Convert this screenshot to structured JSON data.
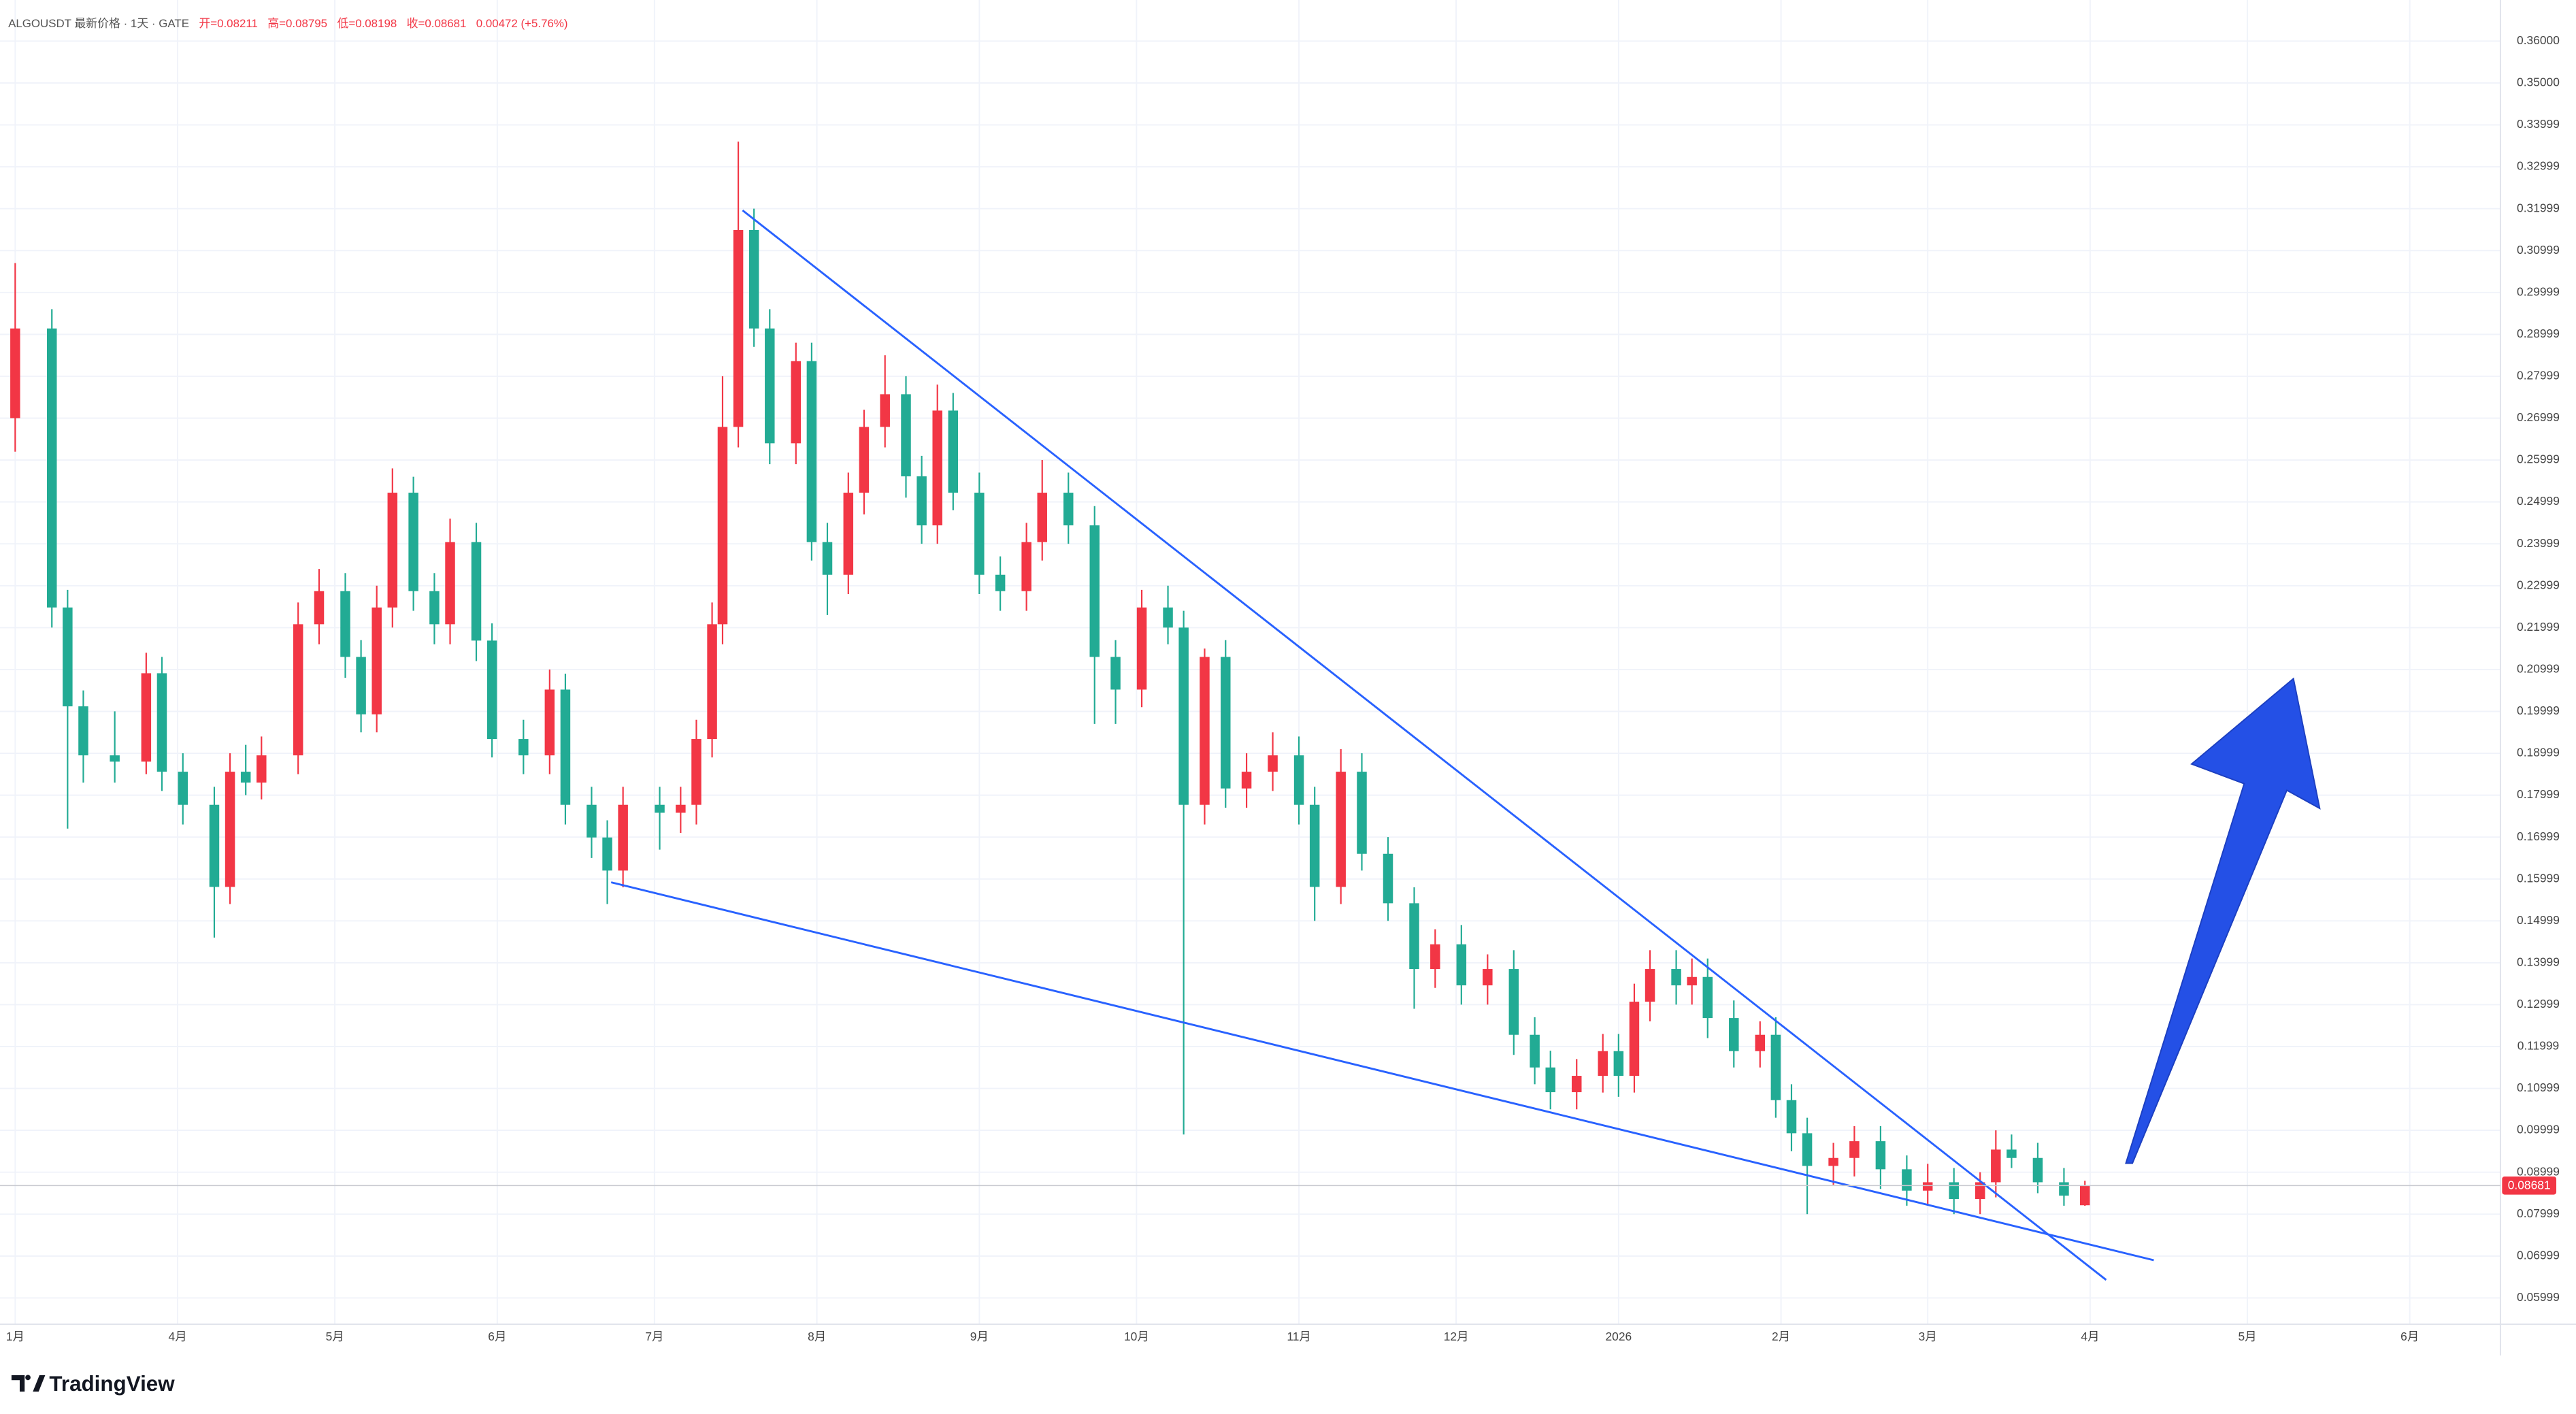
{
  "chart_data": {
    "type": "candlestick",
    "header": {
      "symbol": "ALGOUSDT 最新价格 · 1天 · GATE",
      "open": "开=0.08211",
      "high": "高=0.08795",
      "low": "低=0.08198",
      "close": "收=0.08681",
      "change": "0.00472 (+5.76%)"
    },
    "logo": "TradingView",
    "up_color": "#f23645",
    "down_color": "#22ab94",
    "grid": true,
    "xlim": [
      -33.9,
      443.3
    ],
    "ylim": [
      0.0537,
      0.3698
    ],
    "xticks": [
      {
        "value": -31,
        "label": "1月"
      },
      {
        "value": 0,
        "label": "4月"
      },
      {
        "value": 30,
        "label": "5月"
      },
      {
        "value": 61,
        "label": "6月"
      },
      {
        "value": 91,
        "label": "7月"
      },
      {
        "value": 122,
        "label": "8月"
      },
      {
        "value": 153,
        "label": "9月"
      },
      {
        "value": 183,
        "label": "10月"
      },
      {
        "value": 214,
        "label": "11月"
      },
      {
        "value": 244,
        "label": "12月"
      },
      {
        "value": 275,
        "label": "2026"
      },
      {
        "value": 306,
        "label": "2月"
      },
      {
        "value": 334,
        "label": "3月"
      },
      {
        "value": 365,
        "label": "4月"
      },
      {
        "value": 395,
        "label": "5月"
      },
      {
        "value": 426,
        "label": "6月"
      }
    ],
    "yticks": [
      {
        "value": 0.36,
        "label": "0.36000"
      },
      {
        "value": 0.35,
        "label": "0.35000"
      },
      {
        "value": 0.33999,
        "label": "0.33999"
      },
      {
        "value": 0.32999,
        "label": "0.32999"
      },
      {
        "value": 0.31999,
        "label": "0.31999"
      },
      {
        "value": 0.30999,
        "label": "0.30999"
      },
      {
        "value": 0.29999,
        "label": "0.29999"
      },
      {
        "value": 0.28999,
        "label": "0.28999"
      },
      {
        "value": 0.27999,
        "label": "0.27999"
      },
      {
        "value": 0.26999,
        "label": "0.26999"
      },
      {
        "value": 0.25999,
        "label": "0.25999"
      },
      {
        "value": 0.24999,
        "label": "0.24999"
      },
      {
        "value": 0.23999,
        "label": "0.23999"
      },
      {
        "value": 0.22999,
        "label": "0.22999"
      },
      {
        "value": 0.21999,
        "label": "0.21999"
      },
      {
        "value": 0.20999,
        "label": "0.20999"
      },
      {
        "value": 0.19999,
        "label": "0.19999"
      },
      {
        "value": 0.18999,
        "label": "0.18999"
      },
      {
        "value": 0.17999,
        "label": "0.17999"
      },
      {
        "value": 0.16999,
        "label": "0.16999"
      },
      {
        "value": 0.15999,
        "label": "0.15999"
      },
      {
        "value": 0.14999,
        "label": "0.14999"
      },
      {
        "value": 0.13999,
        "label": "0.13999"
      },
      {
        "value": 0.12999,
        "label": "0.12999"
      },
      {
        "value": 0.11999,
        "label": "0.11999"
      },
      {
        "value": 0.10999,
        "label": "0.10999"
      },
      {
        "value": 0.09999,
        "label": "0.09999"
      },
      {
        "value": 0.08999,
        "label": "0.08999"
      },
      {
        "value": 0.07999,
        "label": "0.07999"
      },
      {
        "value": 0.06999,
        "label": "0.06999"
      },
      {
        "value": 0.05999,
        "label": "0.05999"
      }
    ],
    "last_price": 0.08681,
    "candles": [
      {
        "x": -31,
        "o": 0.27,
        "h": 0.307,
        "l": 0.262,
        "c": 0.2914
      },
      {
        "x": -24,
        "o": 0.2914,
        "h": 0.296,
        "l": 0.22,
        "c": 0.2248
      },
      {
        "x": -21,
        "o": 0.2248,
        "h": 0.229,
        "l": 0.172,
        "c": 0.2012
      },
      {
        "x": -18,
        "o": 0.2012,
        "h": 0.205,
        "l": 0.183,
        "c": 0.1895
      },
      {
        "x": -12,
        "o": 0.1895,
        "h": 0.2,
        "l": 0.183,
        "c": 0.188
      },
      {
        "x": -6,
        "o": 0.188,
        "h": 0.214,
        "l": 0.185,
        "c": 0.2091
      },
      {
        "x": -3,
        "o": 0.2091,
        "h": 0.213,
        "l": 0.181,
        "c": 0.1856
      },
      {
        "x": 1,
        "o": 0.1856,
        "h": 0.19,
        "l": 0.173,
        "c": 0.1777
      },
      {
        "x": 7,
        "o": 0.1777,
        "h": 0.182,
        "l": 0.146,
        "c": 0.1581
      },
      {
        "x": 10,
        "o": 0.1581,
        "h": 0.19,
        "l": 0.154,
        "c": 0.1856
      },
      {
        "x": 13,
        "o": 0.1856,
        "h": 0.192,
        "l": 0.18,
        "c": 0.183
      },
      {
        "x": 16,
        "o": 0.183,
        "h": 0.194,
        "l": 0.179,
        "c": 0.1895
      },
      {
        "x": 23,
        "o": 0.1895,
        "h": 0.226,
        "l": 0.185,
        "c": 0.2208
      },
      {
        "x": 27,
        "o": 0.2208,
        "h": 0.234,
        "l": 0.216,
        "c": 0.2287
      },
      {
        "x": 32,
        "o": 0.2287,
        "h": 0.233,
        "l": 0.208,
        "c": 0.213
      },
      {
        "x": 35,
        "o": 0.213,
        "h": 0.217,
        "l": 0.195,
        "c": 0.1993
      },
      {
        "x": 38,
        "o": 0.1993,
        "h": 0.23,
        "l": 0.195,
        "c": 0.2248
      },
      {
        "x": 41,
        "o": 0.2248,
        "h": 0.258,
        "l": 0.22,
        "c": 0.2522
      },
      {
        "x": 45,
        "o": 0.2522,
        "h": 0.256,
        "l": 0.224,
        "c": 0.2287
      },
      {
        "x": 49,
        "o": 0.2287,
        "h": 0.233,
        "l": 0.216,
        "c": 0.2208
      },
      {
        "x": 52,
        "o": 0.2208,
        "h": 0.246,
        "l": 0.216,
        "c": 0.2404
      },
      {
        "x": 57,
        "o": 0.2404,
        "h": 0.245,
        "l": 0.212,
        "c": 0.2169
      },
      {
        "x": 60,
        "o": 0.2169,
        "h": 0.221,
        "l": 0.189,
        "c": 0.1934
      },
      {
        "x": 66,
        "o": 0.1934,
        "h": 0.198,
        "l": 0.185,
        "c": 0.1895
      },
      {
        "x": 71,
        "o": 0.1895,
        "h": 0.21,
        "l": 0.185,
        "c": 0.2052
      },
      {
        "x": 74,
        "o": 0.2052,
        "h": 0.209,
        "l": 0.173,
        "c": 0.1777
      },
      {
        "x": 79,
        "o": 0.1777,
        "h": 0.182,
        "l": 0.165,
        "c": 0.1699
      },
      {
        "x": 82,
        "o": 0.1699,
        "h": 0.174,
        "l": 0.154,
        "c": 0.162
      },
      {
        "x": 85,
        "o": 0.162,
        "h": 0.182,
        "l": 0.158,
        "c": 0.1777
      },
      {
        "x": 92,
        "o": 0.1777,
        "h": 0.182,
        "l": 0.167,
        "c": 0.1758
      },
      {
        "x": 96,
        "o": 0.1758,
        "h": 0.182,
        "l": 0.171,
        "c": 0.1777
      },
      {
        "x": 99,
        "o": 0.1777,
        "h": 0.198,
        "l": 0.173,
        "c": 0.1934
      },
      {
        "x": 102,
        "o": 0.1934,
        "h": 0.226,
        "l": 0.189,
        "c": 0.2208
      },
      {
        "x": 104,
        "o": 0.2208,
        "h": 0.28,
        "l": 0.216,
        "c": 0.2679
      },
      {
        "x": 107,
        "o": 0.2679,
        "h": 0.336,
        "l": 0.263,
        "c": 0.3149
      },
      {
        "x": 110,
        "o": 0.3149,
        "h": 0.32,
        "l": 0.287,
        "c": 0.2914
      },
      {
        "x": 113,
        "o": 0.2914,
        "h": 0.296,
        "l": 0.259,
        "c": 0.264
      },
      {
        "x": 118,
        "o": 0.264,
        "h": 0.288,
        "l": 0.259,
        "c": 0.2836
      },
      {
        "x": 121,
        "o": 0.2836,
        "h": 0.288,
        "l": 0.236,
        "c": 0.2404
      },
      {
        "x": 124,
        "o": 0.2404,
        "h": 0.245,
        "l": 0.223,
        "c": 0.2326
      },
      {
        "x": 128,
        "o": 0.2326,
        "h": 0.257,
        "l": 0.228,
        "c": 0.2522
      },
      {
        "x": 131,
        "o": 0.2522,
        "h": 0.272,
        "l": 0.247,
        "c": 0.2679
      },
      {
        "x": 135,
        "o": 0.2679,
        "h": 0.285,
        "l": 0.263,
        "c": 0.2757
      },
      {
        "x": 139,
        "o": 0.2757,
        "h": 0.28,
        "l": 0.251,
        "c": 0.2561
      },
      {
        "x": 142,
        "o": 0.2561,
        "h": 0.261,
        "l": 0.24,
        "c": 0.2444
      },
      {
        "x": 145,
        "o": 0.2444,
        "h": 0.278,
        "l": 0.24,
        "c": 0.2718
      },
      {
        "x": 148,
        "o": 0.2718,
        "h": 0.276,
        "l": 0.248,
        "c": 0.2522
      },
      {
        "x": 153,
        "o": 0.2522,
        "h": 0.257,
        "l": 0.228,
        "c": 0.2326
      },
      {
        "x": 157,
        "o": 0.2326,
        "h": 0.237,
        "l": 0.224,
        "c": 0.2287
      },
      {
        "x": 162,
        "o": 0.2287,
        "h": 0.245,
        "l": 0.224,
        "c": 0.2404
      },
      {
        "x": 165,
        "o": 0.2404,
        "h": 0.26,
        "l": 0.236,
        "c": 0.2522
      },
      {
        "x": 170,
        "o": 0.2522,
        "h": 0.257,
        "l": 0.24,
        "c": 0.2444
      },
      {
        "x": 175,
        "o": 0.2444,
        "h": 0.249,
        "l": 0.197,
        "c": 0.213
      },
      {
        "x": 179,
        "o": 0.213,
        "h": 0.217,
        "l": 0.197,
        "c": 0.2052
      },
      {
        "x": 184,
        "o": 0.2052,
        "h": 0.229,
        "l": 0.201,
        "c": 0.2248
      },
      {
        "x": 189,
        "o": 0.2248,
        "h": 0.23,
        "l": 0.216,
        "c": 0.22
      },
      {
        "x": 192,
        "o": 0.22,
        "h": 0.224,
        "l": 0.099,
        "c": 0.1777
      },
      {
        "x": 196,
        "o": 0.1777,
        "h": 0.215,
        "l": 0.173,
        "c": 0.213
      },
      {
        "x": 200,
        "o": 0.213,
        "h": 0.217,
        "l": 0.177,
        "c": 0.1816
      },
      {
        "x": 204,
        "o": 0.1816,
        "h": 0.19,
        "l": 0.177,
        "c": 0.1856
      },
      {
        "x": 209,
        "o": 0.1856,
        "h": 0.195,
        "l": 0.181,
        "c": 0.1895
      },
      {
        "x": 214,
        "o": 0.1895,
        "h": 0.194,
        "l": 0.173,
        "c": 0.1777
      },
      {
        "x": 217,
        "o": 0.1777,
        "h": 0.182,
        "l": 0.15,
        "c": 0.1581
      },
      {
        "x": 222,
        "o": 0.1581,
        "h": 0.191,
        "l": 0.154,
        "c": 0.1856
      },
      {
        "x": 226,
        "o": 0.1856,
        "h": 0.19,
        "l": 0.162,
        "c": 0.166
      },
      {
        "x": 231,
        "o": 0.166,
        "h": 0.17,
        "l": 0.15,
        "c": 0.1542
      },
      {
        "x": 236,
        "o": 0.1542,
        "h": 0.158,
        "l": 0.129,
        "c": 0.1385
      },
      {
        "x": 240,
        "o": 0.1385,
        "h": 0.148,
        "l": 0.134,
        "c": 0.1444
      },
      {
        "x": 245,
        "o": 0.1444,
        "h": 0.149,
        "l": 0.13,
        "c": 0.1346
      },
      {
        "x": 250,
        "o": 0.1346,
        "h": 0.142,
        "l": 0.13,
        "c": 0.1385
      },
      {
        "x": 255,
        "o": 0.1385,
        "h": 0.143,
        "l": 0.118,
        "c": 0.1228
      },
      {
        "x": 259,
        "o": 0.1228,
        "h": 0.127,
        "l": 0.111,
        "c": 0.115
      },
      {
        "x": 262,
        "o": 0.115,
        "h": 0.119,
        "l": 0.105,
        "c": 0.1091
      },
      {
        "x": 267,
        "o": 0.1091,
        "h": 0.117,
        "l": 0.105,
        "c": 0.113
      },
      {
        "x": 272,
        "o": 0.113,
        "h": 0.123,
        "l": 0.109,
        "c": 0.1189
      },
      {
        "x": 275,
        "o": 0.1189,
        "h": 0.123,
        "l": 0.108,
        "c": 0.113
      },
      {
        "x": 278,
        "o": 0.113,
        "h": 0.135,
        "l": 0.109,
        "c": 0.1307
      },
      {
        "x": 281,
        "o": 0.1307,
        "h": 0.143,
        "l": 0.126,
        "c": 0.1385
      },
      {
        "x": 286,
        "o": 0.1385,
        "h": 0.143,
        "l": 0.13,
        "c": 0.1346
      },
      {
        "x": 289,
        "o": 0.1346,
        "h": 0.141,
        "l": 0.13,
        "c": 0.1366
      },
      {
        "x": 292,
        "o": 0.1366,
        "h": 0.141,
        "l": 0.122,
        "c": 0.1268
      },
      {
        "x": 297,
        "o": 0.1268,
        "h": 0.131,
        "l": 0.115,
        "c": 0.1189
      },
      {
        "x": 302,
        "o": 0.1189,
        "h": 0.126,
        "l": 0.115,
        "c": 0.1228
      },
      {
        "x": 305,
        "o": 0.1228,
        "h": 0.127,
        "l": 0.103,
        "c": 0.1072
      },
      {
        "x": 308,
        "o": 0.1072,
        "h": 0.111,
        "l": 0.095,
        "c": 0.0993
      },
      {
        "x": 311,
        "o": 0.0993,
        "h": 0.103,
        "l": 0.08,
        "c": 0.0915
      },
      {
        "x": 316,
        "o": 0.0915,
        "h": 0.097,
        "l": 0.087,
        "c": 0.0934
      },
      {
        "x": 320,
        "o": 0.0934,
        "h": 0.101,
        "l": 0.089,
        "c": 0.0974
      },
      {
        "x": 325,
        "o": 0.0974,
        "h": 0.101,
        "l": 0.086,
        "c": 0.0907
      },
      {
        "x": 330,
        "o": 0.0907,
        "h": 0.094,
        "l": 0.082,
        "c": 0.0856
      },
      {
        "x": 334,
        "o": 0.0856,
        "h": 0.092,
        "l": 0.082,
        "c": 0.0876
      },
      {
        "x": 339,
        "o": 0.0876,
        "h": 0.091,
        "l": 0.08,
        "c": 0.0836
      },
      {
        "x": 344,
        "o": 0.0836,
        "h": 0.09,
        "l": 0.08,
        "c": 0.0876
      },
      {
        "x": 347,
        "o": 0.0876,
        "h": 0.1,
        "l": 0.084,
        "c": 0.0954
      },
      {
        "x": 350,
        "o": 0.0954,
        "h": 0.099,
        "l": 0.091,
        "c": 0.0934
      },
      {
        "x": 355,
        "o": 0.0934,
        "h": 0.097,
        "l": 0.085,
        "c": 0.0876
      },
      {
        "x": 360,
        "o": 0.0876,
        "h": 0.091,
        "l": 0.082,
        "c": 0.0844
      },
      {
        "x": 364,
        "o": 0.08211,
        "h": 0.08795,
        "l": 0.08198,
        "c": 0.08681
      }
    ]
  }
}
